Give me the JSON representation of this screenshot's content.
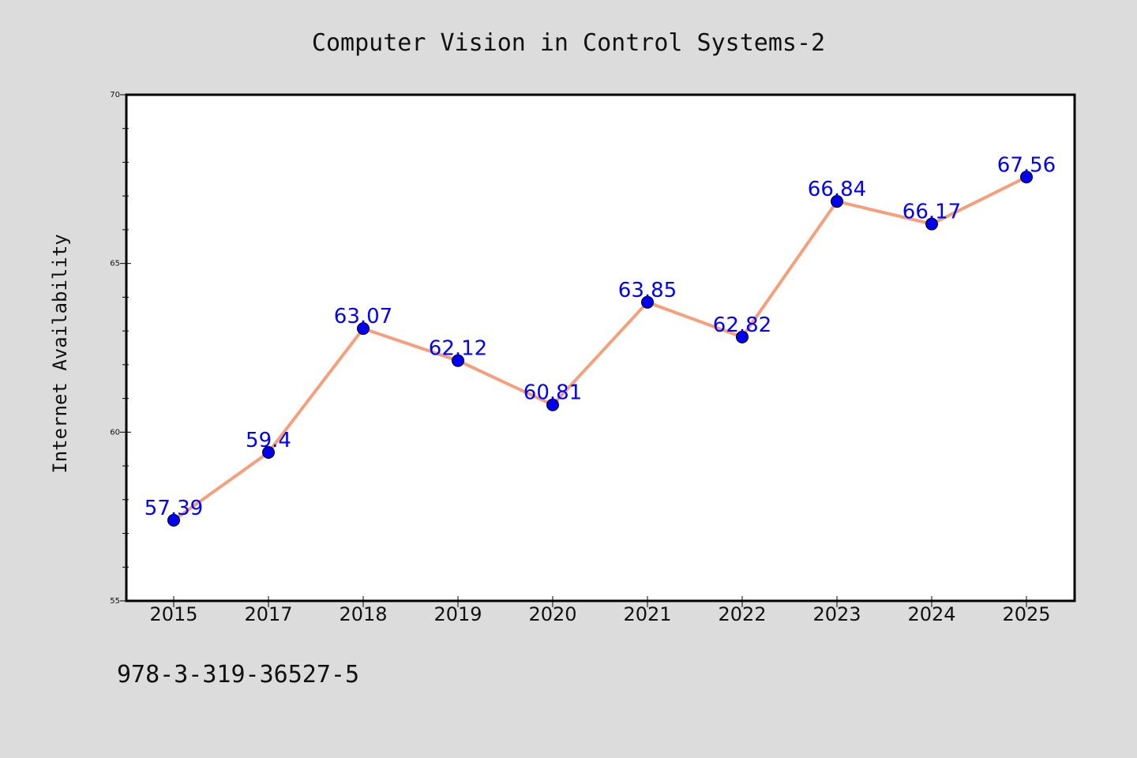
{
  "chart_data": {
    "type": "line",
    "title": "Computer Vision in Control Systems-2",
    "ylabel": "Internet Availability",
    "xlabel": "",
    "categories": [
      "2015",
      "2017",
      "2018",
      "2019",
      "2020",
      "2021",
      "2022",
      "2023",
      "2024",
      "2025"
    ],
    "series": [
      {
        "values": [
          57.39,
          59.4,
          63.07,
          62.12,
          60.81,
          63.85,
          62.82,
          66.84,
          66.17,
          67.56
        ],
        "labels": [
          "57.39",
          "59.4",
          "63.07",
          "62.12",
          "60.81",
          "63.85",
          "62.82",
          "66.84",
          "66.17",
          "67.56"
        ]
      }
    ],
    "ylim": [
      55,
      70
    ],
    "yticks": [
      55,
      60,
      65,
      70
    ],
    "ytick_labels": [
      "55",
      "60",
      "65",
      "70"
    ],
    "grid": false,
    "colors": {
      "line": "#f4a07c",
      "marker": "#0000ee",
      "label": "#0000ff",
      "background": "#dcdcdc",
      "plot_background": "#ffffff"
    }
  },
  "footer": {
    "code": "978-3-319-36527-5"
  }
}
